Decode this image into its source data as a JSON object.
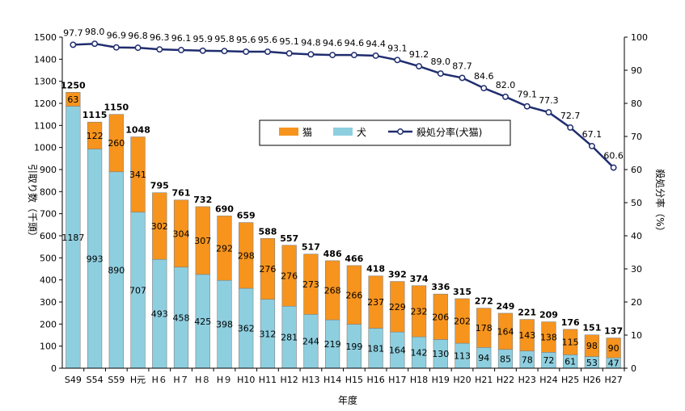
{
  "chart_data": {
    "type": "bar",
    "subtype": "stacked bar + line (secondary axis)",
    "categories": [
      "S49",
      "S54",
      "S59",
      "H元",
      "H６",
      "H７",
      "H８",
      "H９",
      "H10",
      "H11",
      "H12",
      "H13",
      "H14",
      "H15",
      "H16",
      "H17",
      "H18",
      "H19",
      "H20",
      "H21",
      "H22",
      "H23",
      "H24",
      "H25",
      "H26",
      "H27"
    ],
    "series": [
      {
        "name": "犬",
        "type": "bar",
        "color": "#8ECFDF",
        "values": [
          1187,
          993,
          890,
          707,
          493,
          458,
          425,
          398,
          362,
          312,
          281,
          244,
          219,
          199,
          181,
          164,
          142,
          130,
          113,
          94,
          85,
          78,
          72,
          61,
          53,
          47
        ]
      },
      {
        "name": "猫",
        "type": "bar",
        "color": "#F7941D",
        "values": [
          63,
          122,
          260,
          341,
          302,
          304,
          307,
          292,
          298,
          276,
          276,
          273,
          268,
          266,
          237,
          229,
          232,
          206,
          202,
          178,
          164,
          143,
          138,
          115,
          98,
          90
        ]
      },
      {
        "name": "殺処分率(犬猫)",
        "type": "line",
        "axis": "right",
        "color": "#1F2D6E",
        "values": [
          97.7,
          98.0,
          96.9,
          96.8,
          96.3,
          96.1,
          95.9,
          95.8,
          95.6,
          95.6,
          95.1,
          94.8,
          94.6,
          94.6,
          94.4,
          93.1,
          91.2,
          89.0,
          87.7,
          84.6,
          82.0,
          79.1,
          77.3,
          72.7,
          67.1,
          60.6
        ]
      }
    ],
    "totals": [
      1250,
      1115,
      1150,
      1048,
      795,
      761,
      732,
      690,
      659,
      588,
      557,
      517,
      486,
      466,
      418,
      392,
      374,
      336,
      315,
      272,
      249,
      221,
      209,
      176,
      151,
      137
    ],
    "rate_labels": [
      "97.7",
      "98.0",
      "96.9",
      "96.8",
      "96.3",
      "96.1",
      "95.9",
      "95.8",
      "95.6",
      "95.6",
      "95.1",
      "94.8",
      "94.6",
      "94.6",
      "94.4",
      "93.1",
      "91.2",
      "89.0",
      "87.7",
      "84.6",
      "82.0",
      "79.1",
      "77.3",
      "72.7",
      "67.1",
      "60.6"
    ],
    "xlabel": "年度",
    "ylabel": "引取り数（千頭）",
    "y2label": "殺処分率（%）",
    "ylim": [
      0,
      1500
    ],
    "y2lim": [
      0,
      100
    ],
    "yticks": [
      "0",
      "100",
      "200",
      "300",
      "400",
      "500",
      "600",
      "700",
      "800",
      "900",
      "1000",
      "1100",
      "1200",
      "1300",
      "1400",
      "1500"
    ],
    "y2ticks": [
      "0",
      "10",
      "20",
      "30",
      "40",
      "50",
      "60",
      "70",
      "80",
      "90",
      "100"
    ],
    "grid": false,
    "legend_position": "top-center"
  }
}
